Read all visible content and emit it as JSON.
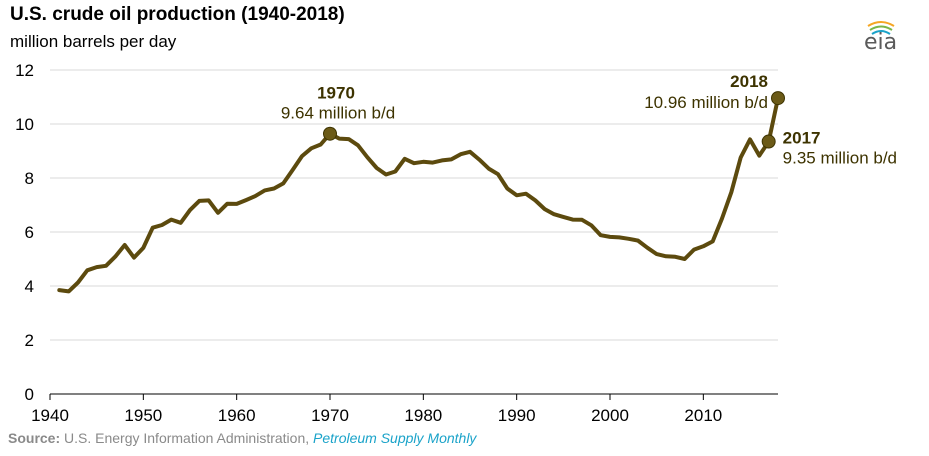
{
  "chart_data": {
    "type": "line",
    "title": "U.S. crude oil production (1940-2018)",
    "ylabel": "million barrels per day",
    "xlim": [
      1940,
      2018
    ],
    "ylim": [
      0,
      12
    ],
    "x_ticks": [
      1940,
      1950,
      1960,
      1970,
      1980,
      1990,
      2000,
      2010
    ],
    "y_ticks": [
      0,
      2,
      4,
      6,
      8,
      10,
      12
    ],
    "series": [
      {
        "name": "U.S. crude oil production",
        "color": "#5c4a0e",
        "x": [
          1941,
          1942,
          1943,
          1944,
          1945,
          1946,
          1947,
          1948,
          1949,
          1950,
          1951,
          1952,
          1953,
          1954,
          1955,
          1956,
          1957,
          1958,
          1959,
          1960,
          1961,
          1962,
          1963,
          1964,
          1965,
          1966,
          1967,
          1968,
          1969,
          1970,
          1971,
          1972,
          1973,
          1974,
          1975,
          1976,
          1977,
          1978,
          1979,
          1980,
          1981,
          1982,
          1983,
          1984,
          1985,
          1986,
          1987,
          1988,
          1989,
          1990,
          1991,
          1992,
          1993,
          1994,
          1995,
          1996,
          1997,
          1998,
          1999,
          2000,
          2001,
          2002,
          2003,
          2004,
          2005,
          2006,
          2007,
          2008,
          2009,
          2010,
          2011,
          2012,
          2013,
          2014,
          2015,
          2016,
          2017,
          2018
        ],
        "values": [
          3.85,
          3.8,
          4.13,
          4.58,
          4.7,
          4.75,
          5.09,
          5.52,
          5.05,
          5.41,
          6.16,
          6.26,
          6.46,
          6.34,
          6.81,
          7.15,
          7.17,
          6.71,
          7.05,
          7.04,
          7.18,
          7.33,
          7.54,
          7.61,
          7.8,
          8.3,
          8.81,
          9.1,
          9.24,
          9.64,
          9.46,
          9.44,
          9.21,
          8.77,
          8.37,
          8.13,
          8.24,
          8.71,
          8.55,
          8.6,
          8.57,
          8.65,
          8.69,
          8.88,
          8.97,
          8.68,
          8.35,
          8.14,
          7.61,
          7.36,
          7.42,
          7.17,
          6.85,
          6.66,
          6.56,
          6.46,
          6.45,
          6.25,
          5.88,
          5.82,
          5.8,
          5.75,
          5.68,
          5.42,
          5.18,
          5.1,
          5.08,
          5.0,
          5.35,
          5.47,
          5.65,
          6.5,
          7.47,
          8.76,
          9.43,
          8.83,
          9.35,
          10.96
        ]
      }
    ],
    "annotations": [
      {
        "year": "1970",
        "text": "9.64 million b/d",
        "x": 1970,
        "y": 9.64
      },
      {
        "year": "2017",
        "text": "9.35 million b/d",
        "x": 2017,
        "y": 9.35
      },
      {
        "year": "2018",
        "text": "10.96 million b/d",
        "x": 2018,
        "y": 10.96
      }
    ]
  },
  "logo": {
    "text": "eia"
  },
  "source": {
    "label": "Source:",
    "text": "U.S. Energy Information Administration,",
    "link": "Petroleum Supply Monthly"
  }
}
